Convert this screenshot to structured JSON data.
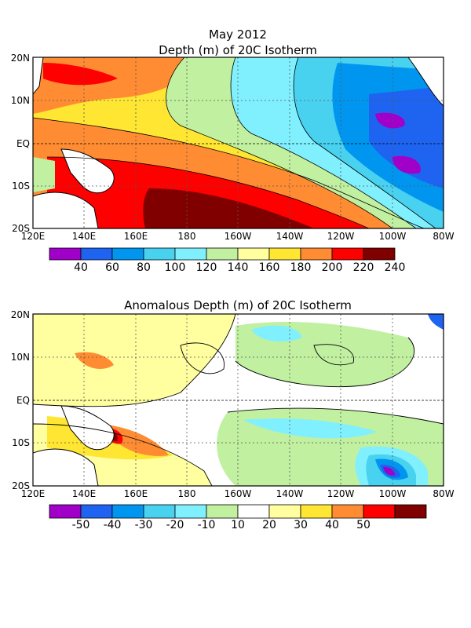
{
  "figure_title": "May 2012",
  "colors": {
    "land": "#ffffff",
    "gridline": "#555555",
    "contour": "#000000"
  },
  "panels": [
    {
      "title": "Depth (m) of 20C Isotherm",
      "x_ticks": [
        "120E",
        "140E",
        "160E",
        "180",
        "160W",
        "140W",
        "120W",
        "100W",
        "80W"
      ],
      "y_ticks": [
        "20N",
        "10N",
        "EQ",
        "10S",
        "20S"
      ],
      "colorbar": {
        "labels": [
          "40",
          "60",
          "80",
          "100",
          "120",
          "140",
          "160",
          "180",
          "200",
          "220",
          "240"
        ],
        "colors": [
          "#a000c8",
          "#1e64f0",
          "#0096f0",
          "#48d2f0",
          "#80f0ff",
          "#c0f0a0",
          "#ffffa0",
          "#ffe632",
          "#ff8c32",
          "#ff0000",
          "#800000"
        ]
      }
    },
    {
      "title": "Anomalous Depth (m) of 20C Isotherm",
      "x_ticks": [
        "120E",
        "140E",
        "160E",
        "180",
        "160W",
        "140W",
        "120W",
        "100W",
        "80W"
      ],
      "y_ticks": [
        "20N",
        "10N",
        "EQ",
        "10S",
        "20S"
      ],
      "colorbar": {
        "labels": [
          "-50",
          "-40",
          "-30",
          "-20",
          "-10",
          "10",
          "20",
          "30",
          "40",
          "50"
        ],
        "colors": [
          "#a000c8",
          "#1e64f0",
          "#0096f0",
          "#48d2f0",
          "#80f0ff",
          "#c0f0a0",
          "#ffffff",
          "#ffffa0",
          "#ffe632",
          "#ff8c32",
          "#ff0000",
          "#800000"
        ]
      }
    }
  ]
}
